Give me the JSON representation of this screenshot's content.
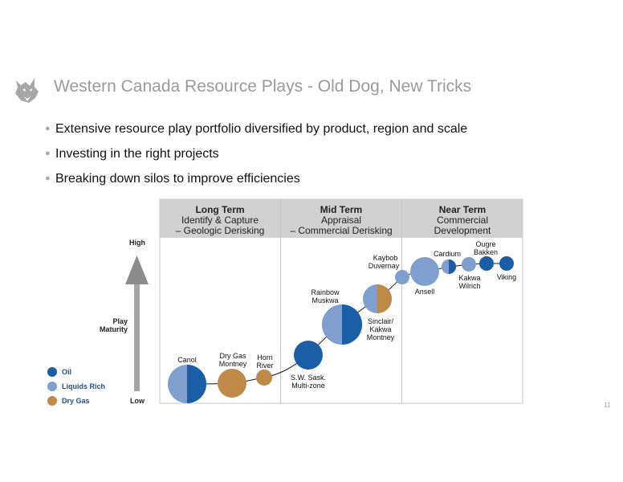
{
  "header": {
    "title": "Western Canada Resource Plays - Old Dog, New Tricks"
  },
  "bullets": [
    "Extensive resource play portfolio diversified by product, region and scale",
    "Investing in the right projects",
    "Breaking down silos to improve efficiencies"
  ],
  "diagram": {
    "columns": [
      {
        "heading": "Long Term",
        "sub1": "Identify & Capture",
        "sub2": "– Geologic Derisking"
      },
      {
        "heading": "Mid Term",
        "sub1": "Appraisal",
        "sub2": "– Commercial Derisking"
      },
      {
        "heading": "Near Term",
        "sub1": "Commercial",
        "sub2": "Development"
      }
    ],
    "axis": {
      "high": "High",
      "low": "Low",
      "label_line1": "Play",
      "label_line2": "Maturity"
    },
    "legend": [
      {
        "label": "Oil",
        "color": "#1a5ea8"
      },
      {
        "label": "Liquids Rich",
        "color": "#7f9fcf"
      },
      {
        "label": "Dry Gas",
        "color": "#bf8a48"
      }
    ],
    "plays": [
      {
        "lines": [
          "Canol"
        ],
        "type": "oil+liquids"
      },
      {
        "lines": [
          "Dry Gas",
          "Montney"
        ],
        "type": "dry-gas"
      },
      {
        "lines": [
          "Horn",
          "River"
        ],
        "type": "dry-gas"
      },
      {
        "lines": [
          "S.W. Sask.",
          "Multi-zone"
        ],
        "type": "oil"
      },
      {
        "lines": [
          "Rainbow",
          "Muskwa"
        ],
        "type": "liquids+oil"
      },
      {
        "lines": [
          "Sinclair/",
          "Kakwa",
          "Montney"
        ],
        "type": "liquids+dry-gas"
      },
      {
        "lines": [
          "Kaybob",
          "Duvernay"
        ],
        "type": "liquids"
      },
      {
        "lines": [
          "Ansell"
        ],
        "type": "liquids"
      },
      {
        "lines": [
          "Cardium"
        ],
        "type": "liquids+oil"
      },
      {
        "lines": [
          "Kakwa",
          "Wilrich"
        ],
        "type": "liquids"
      },
      {
        "lines": [
          "Ougre",
          "Bakken"
        ],
        "type": "oil"
      },
      {
        "lines": [
          "Viking"
        ],
        "type": "oil"
      }
    ]
  },
  "page_number": "11"
}
